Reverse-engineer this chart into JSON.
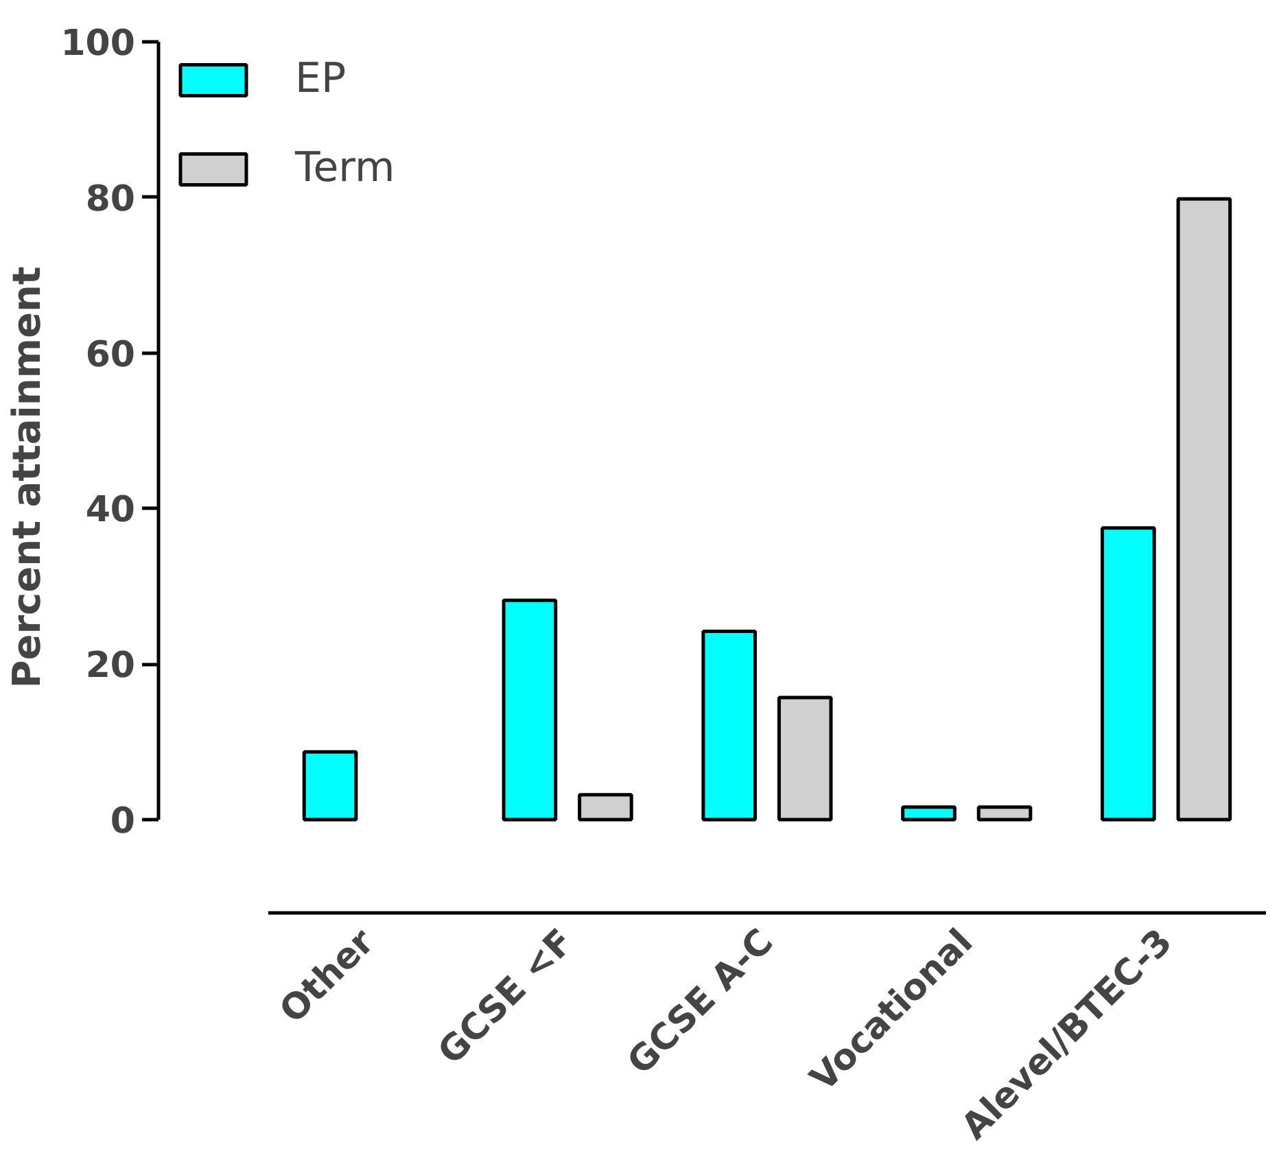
{
  "chart_data": {
    "type": "bar",
    "ylabel": "Percent attainment",
    "categories": [
      "Other",
      "GCSE <F",
      "GCSE A-C",
      "Vocational",
      "Alevel/BTEC-3"
    ],
    "series": [
      {
        "name": "EP",
        "color": "#00ffff",
        "values": [
          8.7,
          28.2,
          24.2,
          1.6,
          37.5
        ]
      },
      {
        "name": "Term",
        "color": "#d0d0d0",
        "values": [
          null,
          3.2,
          15.7,
          1.6,
          79.8
        ]
      }
    ],
    "ylim": [
      0,
      100
    ],
    "yticks": [
      0,
      20,
      40,
      60,
      80,
      100
    ],
    "grid": false,
    "legend": "top left"
  }
}
